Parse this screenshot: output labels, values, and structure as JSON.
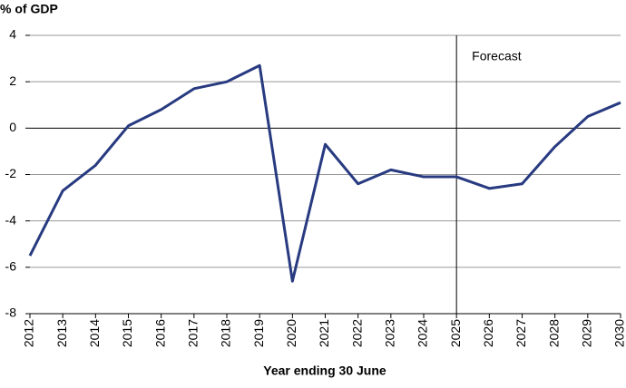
{
  "chart_data": {
    "type": "line",
    "y_axis_label": "% of GDP",
    "x_axis_label": "Year ending 30 June",
    "categories": [
      "2012",
      "2013",
      "2014",
      "2015",
      "2016",
      "2017",
      "2018",
      "2019",
      "2020",
      "2021",
      "2022",
      "2023",
      "2024",
      "2025",
      "2026",
      "2027",
      "2028",
      "2029",
      "2030"
    ],
    "series": [
      {
        "color": "#283a80",
        "values": [
          -5.5,
          -2.7,
          -1.6,
          0.1,
          0.8,
          1.7,
          2.0,
          2.7,
          -6.6,
          -0.7,
          -2.4,
          -1.8,
          -2.1,
          -2.1,
          -2.6,
          -2.4,
          -0.8,
          0.5,
          1.1
        ]
      }
    ],
    "ylim": [
      -8,
      4
    ],
    "yticks": [
      -8,
      -6,
      -4,
      -2,
      0,
      2,
      4
    ],
    "grid": true,
    "annotations": [
      {
        "text": "Forecast",
        "x": "2025"
      }
    ]
  }
}
